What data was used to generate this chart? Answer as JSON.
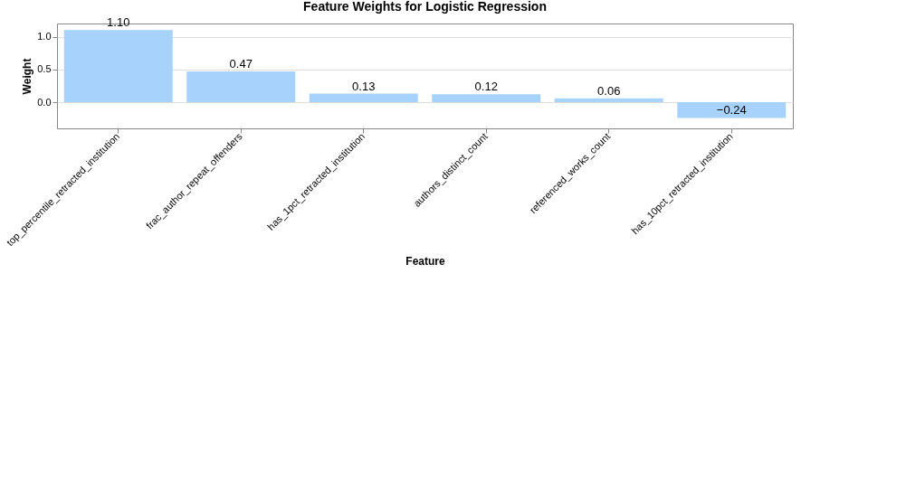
{
  "chart_data": {
    "type": "bar",
    "title": "Feature Weights for Logistic Regression",
    "xlabel": "Feature",
    "ylabel": "Weight",
    "categories": [
      "top_percentile_retracted_institution",
      "frac_author_repeat_offenders",
      "has_1pct_retracted_institution",
      "authors_distinct_count",
      "referenced_works_count",
      "has_10pct_retracted_institution"
    ],
    "values": [
      1.1,
      0.47,
      0.13,
      0.12,
      0.06,
      -0.24
    ],
    "value_labels": [
      "1.10",
      "0.47",
      "0.13",
      "0.12",
      "0.06",
      "−0.24"
    ],
    "color": "#a6d2fb",
    "ylim": [
      -0.4,
      1.2
    ],
    "yticks": [
      {
        "value": 0,
        "label": "0.0"
      },
      0.5,
      {
        "value": 1,
        "label": "1.0"
      }
    ],
    "grid": "y"
  }
}
